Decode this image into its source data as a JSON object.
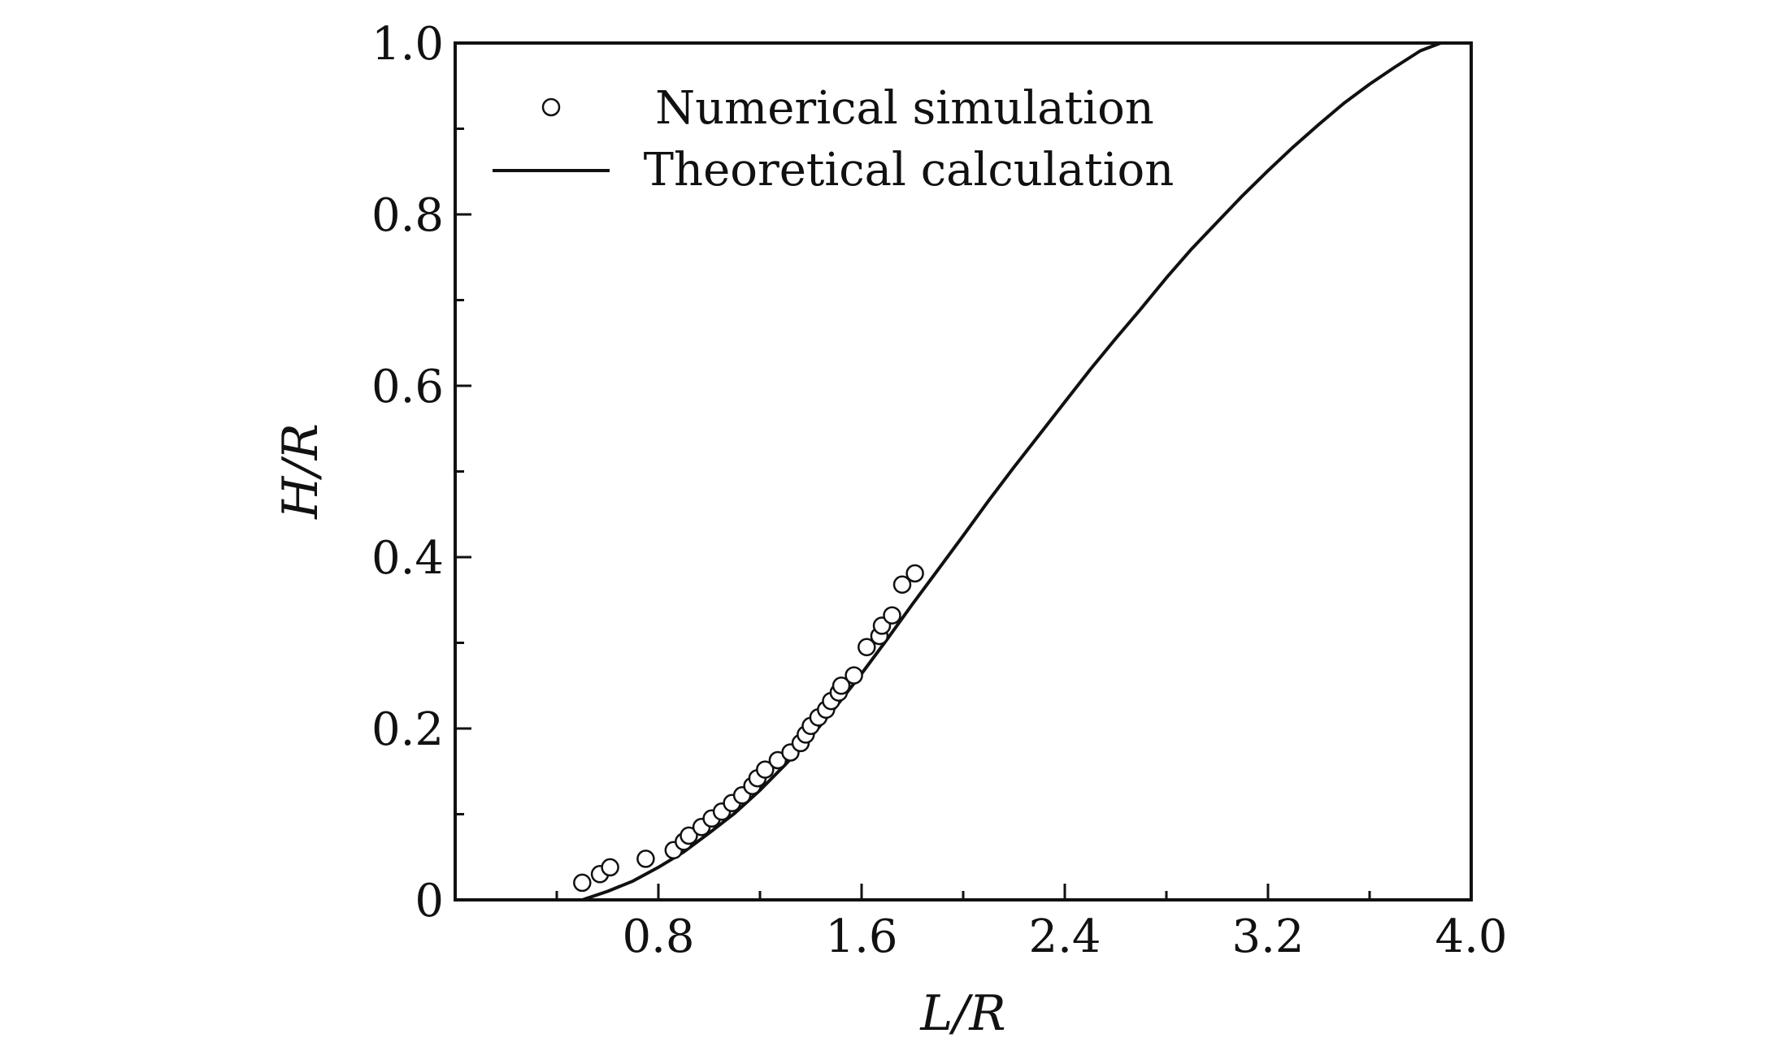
{
  "chart_data": {
    "type": "scatter",
    "title": "",
    "xlabel": "L/R",
    "ylabel": "H/R",
    "xlim": [
      0,
      4.0
    ],
    "ylim": [
      0,
      1.0
    ],
    "x_ticks": [
      0.8,
      1.6,
      2.4,
      3.2,
      4.0
    ],
    "x_tick_labels": [
      "0.8",
      "1.6",
      "2.4",
      "3.2",
      "4.0"
    ],
    "y_ticks": [
      0,
      0.2,
      0.4,
      0.6,
      0.8,
      1.0
    ],
    "y_tick_labels": [
      "0",
      "0.2",
      "0.4",
      "0.6",
      "0.8",
      "1.0"
    ],
    "grid": false,
    "legend_position": "top-left",
    "series": [
      {
        "name": "Numerical simulation",
        "kind": "markers",
        "marker": "open-circle",
        "points": [
          [
            0.5,
            0.02
          ],
          [
            0.57,
            0.03
          ],
          [
            0.61,
            0.038
          ],
          [
            0.75,
            0.048
          ],
          [
            0.86,
            0.058
          ],
          [
            0.9,
            0.068
          ],
          [
            0.92,
            0.075
          ],
          [
            0.97,
            0.085
          ],
          [
            1.01,
            0.095
          ],
          [
            1.05,
            0.103
          ],
          [
            1.09,
            0.113
          ],
          [
            1.13,
            0.122
          ],
          [
            1.17,
            0.133
          ],
          [
            1.19,
            0.142
          ],
          [
            1.22,
            0.152
          ],
          [
            1.27,
            0.163
          ],
          [
            1.32,
            0.172
          ],
          [
            1.36,
            0.183
          ],
          [
            1.38,
            0.193
          ],
          [
            1.4,
            0.203
          ],
          [
            1.43,
            0.213
          ],
          [
            1.46,
            0.222
          ],
          [
            1.48,
            0.232
          ],
          [
            1.51,
            0.242
          ],
          [
            1.52,
            0.25
          ],
          [
            1.57,
            0.262
          ],
          [
            1.62,
            0.295
          ],
          [
            1.67,
            0.308
          ],
          [
            1.68,
            0.32
          ],
          [
            1.72,
            0.332
          ],
          [
            1.76,
            0.368
          ],
          [
            1.81,
            0.381
          ]
        ]
      },
      {
        "name": "Theoretical calculation",
        "kind": "line",
        "points": [
          [
            0.5,
            0.0
          ],
          [
            0.6,
            0.01
          ],
          [
            0.7,
            0.022
          ],
          [
            0.8,
            0.038
          ],
          [
            0.9,
            0.056
          ],
          [
            1.0,
            0.078
          ],
          [
            1.1,
            0.101
          ],
          [
            1.2,
            0.128
          ],
          [
            1.3,
            0.158
          ],
          [
            1.4,
            0.19
          ],
          [
            1.5,
            0.226
          ],
          [
            1.6,
            0.264
          ],
          [
            1.7,
            0.304
          ],
          [
            1.8,
            0.345
          ],
          [
            1.9,
            0.385
          ],
          [
            2.0,
            0.425
          ],
          [
            2.1,
            0.466
          ],
          [
            2.2,
            0.505
          ],
          [
            2.3,
            0.543
          ],
          [
            2.4,
            0.581
          ],
          [
            2.5,
            0.619
          ],
          [
            2.6,
            0.655
          ],
          [
            2.7,
            0.69
          ],
          [
            2.8,
            0.726
          ],
          [
            2.9,
            0.76
          ],
          [
            3.0,
            0.791
          ],
          [
            3.1,
            0.822
          ],
          [
            3.2,
            0.851
          ],
          [
            3.3,
            0.879
          ],
          [
            3.4,
            0.905
          ],
          [
            3.5,
            0.93
          ],
          [
            3.6,
            0.952
          ],
          [
            3.7,
            0.972
          ],
          [
            3.8,
            0.991
          ],
          [
            3.88,
            1.0
          ]
        ]
      }
    ]
  }
}
